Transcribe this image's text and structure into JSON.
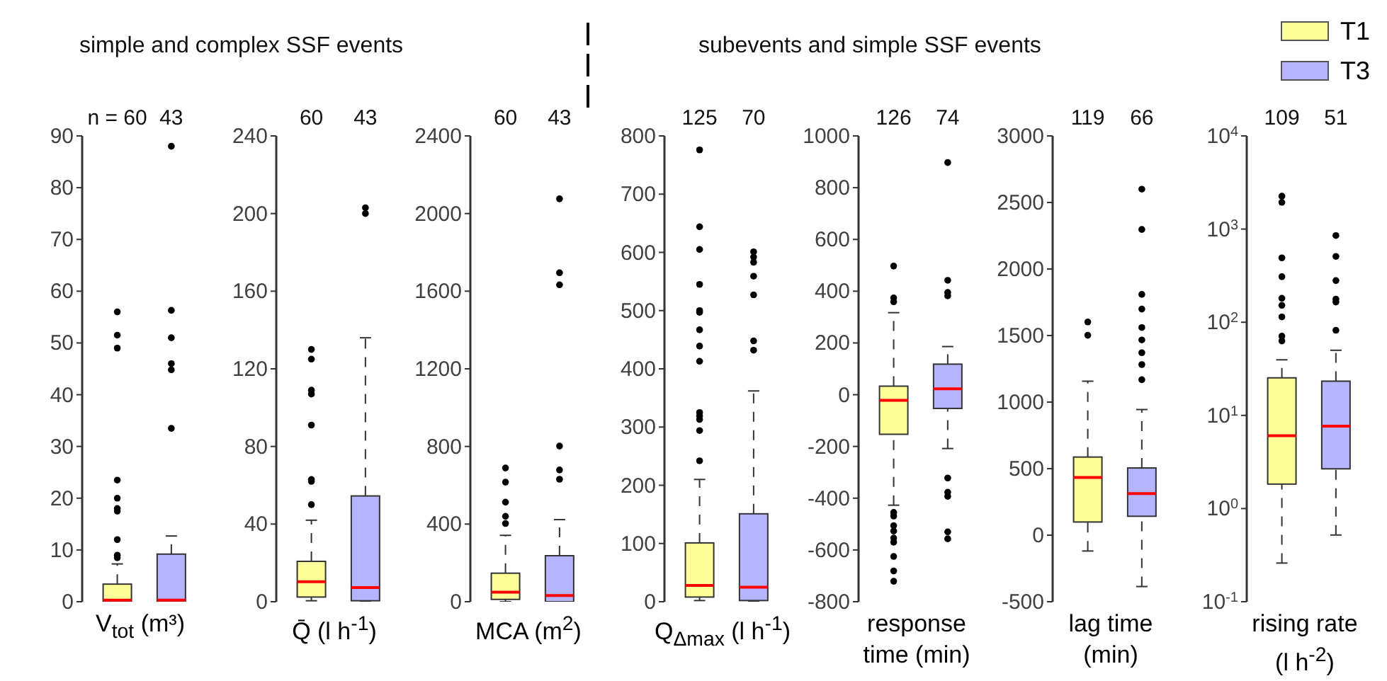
{
  "chart_data": [
    {
      "type": "box",
      "title": "simple and complex SSF events",
      "xlabel": "V$_{tot}$ (m³)",
      "categories": [
        "n = 60",
        "43"
      ],
      "ylim": [
        0,
        90
      ],
      "yticks": [
        0,
        10,
        20,
        30,
        40,
        50,
        60,
        70,
        80,
        90
      ],
      "series": [
        {
          "color": "#ffff99",
          "boxes": [
            {
              "low": 0,
              "q1": 0,
              "median": 0.3,
              "q3": 3.4,
              "high": 7.3,
              "outliers": [
                8.5,
                9,
                12,
                17.5,
                18,
                20,
                23.5,
                49,
                51.5,
                56
              ]
            },
            null
          ]
        },
        {
          "color": "#b4b4ff",
          "boxes": [
            null,
            {
              "low": 0,
              "q1": 0,
              "median": 0.3,
              "q3": 9.2,
              "high": 12.7,
              "outliers": [
                33.5,
                44.8,
                46,
                51,
                56.3,
                88
              ]
            }
          ]
        }
      ]
    },
    {
      "type": "box",
      "xlabel": "Q̄ (l h$^{-1}$)",
      "categories": [
        "60",
        "43"
      ],
      "ylim": [
        0,
        240
      ],
      "yticks": [
        0,
        40,
        80,
        120,
        160,
        200,
        240
      ],
      "series": [
        {
          "color": "#ffff99",
          "boxes": [
            {
              "low": 0.5,
              "q1": 2.4,
              "median": 10.3,
              "q3": 20.8,
              "high": 42,
              "outliers": [
                50,
                62,
                63,
                91,
                107,
                109,
                125,
                130
              ]
            },
            null
          ]
        },
        {
          "color": "#b4b4ff",
          "boxes": [
            null,
            {
              "low": 0,
              "q1": 0.5,
              "median": 7.3,
              "q3": 54.5,
              "high": 136,
              "outliers": [
                200,
                203
              ]
            }
          ]
        }
      ]
    },
    {
      "type": "box",
      "xlabel": "MCA (m$^{2}$)",
      "categories": [
        "60",
        "43"
      ],
      "ylim": [
        0,
        2400
      ],
      "yticks": [
        0,
        400,
        800,
        1200,
        1600,
        2000,
        2400
      ],
      "series": [
        {
          "color": "#ffff99",
          "boxes": [
            {
              "low": 0,
              "q1": 12,
              "median": 49,
              "q3": 147,
              "high": 342,
              "outliers": [
                403,
                440,
                513,
                616,
                689
              ]
            },
            null
          ]
        },
        {
          "color": "#b4b4ff",
          "boxes": [
            null,
            {
              "low": 0,
              "q1": 0,
              "median": 32,
              "q3": 237,
              "high": 423,
              "outliers": [
                631,
                679,
                802,
                1633,
                1695,
                2076
              ]
            }
          ]
        }
      ]
    },
    {
      "type": "box",
      "title": "subevents and simple SSF events",
      "xlabel": "Q$_{Δmax}$ (l h$^{-1}$)",
      "categories": [
        "125",
        "70"
      ],
      "ylim": [
        0,
        800
      ],
      "yticks": [
        0,
        100,
        200,
        300,
        400,
        500,
        600,
        700,
        800
      ],
      "series": [
        {
          "color": "#ffff99",
          "boxes": [
            {
              "low": 2,
              "q1": 8,
              "median": 28,
              "q3": 101,
              "high": 210,
              "outliers": [
                242,
                294,
                313,
                319,
                325,
                413,
                439,
                467,
                497,
                500,
                545,
                605,
                644,
                776
              ]
            },
            null
          ]
        },
        {
          "color": "#b4b4ff",
          "boxes": [
            null,
            {
              "low": 0,
              "q1": 2,
              "median": 25,
              "q3": 151,
              "high": 362,
              "outliers": [
                432,
                448,
                527,
                559,
                583,
                592,
                601
              ]
            }
          ]
        }
      ]
    },
    {
      "type": "box",
      "xlabel": "response time (min)",
      "categories": [
        "126",
        "74"
      ],
      "ylim": [
        -800,
        1000
      ],
      "yticks": [
        -800,
        -600,
        -400,
        -200,
        0,
        200,
        400,
        600,
        800,
        1000
      ],
      "series": [
        {
          "color": "#ffff99",
          "boxes": [
            {
              "low": -427,
              "q1": -153,
              "median": -22,
              "q3": 33,
              "high": 317,
              "outliers": [
                -721,
                -681,
                -625,
                -570,
                -554,
                -527,
                -506,
                -469,
                -455,
                359,
                374,
                497
              ]
            },
            null
          ]
        },
        {
          "color": "#b4b4ff",
          "boxes": [
            null,
            {
              "low": -208,
              "q1": -53,
              "median": 23,
              "q3": 118,
              "high": 186,
              "outliers": [
                -557,
                -530,
                -393,
                -377,
                -322,
                382,
                395,
                442,
                897
              ]
            }
          ]
        }
      ]
    },
    {
      "type": "box",
      "xlabel": "lag time (min)",
      "categories": [
        "119",
        "66"
      ],
      "ylim": [
        -500,
        3000
      ],
      "yticks": [
        -500,
        0,
        500,
        1000,
        1500,
        2000,
        2500,
        3000
      ],
      "series": [
        {
          "color": "#ffff99",
          "boxes": [
            {
              "low": -119,
              "q1": 99,
              "median": 434,
              "q3": 587,
              "high": 1157,
              "outliers": [
                1502,
                1602
              ]
            },
            null
          ]
        },
        {
          "color": "#b4b4ff",
          "boxes": [
            null,
            {
              "low": -386,
              "q1": 142,
              "median": 313,
              "q3": 505,
              "high": 944,
              "outliers": [
                1168,
                1282,
                1371,
                1467,
                1560,
                1699,
                1809,
                2297,
                2600
              ]
            }
          ]
        }
      ]
    },
    {
      "type": "box",
      "xlabel": "rising rate (l h$^{-2}$)",
      "categories": [
        "109",
        "51"
      ],
      "log": true,
      "legend": "top right",
      "ylim": [
        0.1,
        10000
      ],
      "yticks": [
        {
          "value": 0.1,
          "label": "10$^{-1}$"
        },
        {
          "value": 1,
          "label": "10$^{0}$"
        },
        {
          "value": 10,
          "label": "10$^{1}$"
        },
        {
          "value": 100,
          "label": "10$^{2}$"
        },
        {
          "value": 1000,
          "label": "10$^{3}$"
        },
        {
          "value": 10000,
          "label": "10$^{4}$"
        }
      ],
      "series": [
        {
          "name": "T1",
          "color": "#ffff99",
          "boxes": [
            {
              "low": 0.26,
              "q1": 1.83,
              "median": 6.05,
              "q3": 25.3,
              "high": 39.5,
              "outliers": [
                63,
                71,
                114,
                152,
                181,
                308,
                491,
                1937,
                2255
              ]
            },
            null
          ]
        },
        {
          "name": "T3",
          "color": "#b4b4ff",
          "boxes": [
            null,
            {
              "low": 0.52,
              "q1": 2.67,
              "median": 7.65,
              "q3": 23.3,
              "high": 50,
              "outliers": [
                82,
                165,
                177,
                280,
                509,
                853
              ]
            }
          ]
        }
      ]
    }
  ]
}
